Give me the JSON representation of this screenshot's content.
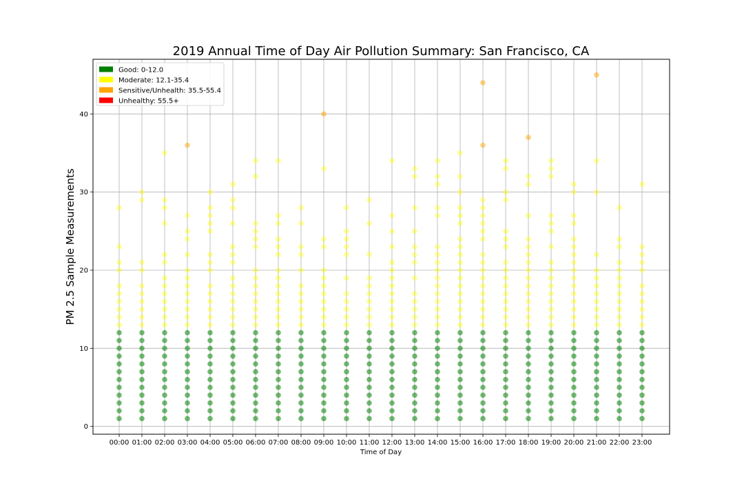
{
  "chart_data": {
    "type": "scatter",
    "title": "2019 Annual Time of Day Air Pollution Summary: San Francisco, CA",
    "xlabel": "Time of Day",
    "ylabel": "PM 2.5 Sample Measurements",
    "categories": [
      "00:00",
      "01:00",
      "02:00",
      "03:00",
      "04:00",
      "05:00",
      "06:00",
      "07:00",
      "08:00",
      "09:00",
      "10:00",
      "11:00",
      "12:00",
      "13:00",
      "14:00",
      "15:00",
      "16:00",
      "17:00",
      "18:00",
      "19:00",
      "20:00",
      "21:00",
      "22:00",
      "23:00"
    ],
    "ylim": [
      -1,
      47
    ],
    "yticks": [
      0,
      10,
      20,
      30,
      40
    ],
    "grid": true,
    "legend_position": "top-left",
    "legend": [
      {
        "label": "Good: 0-12.0",
        "color": "#008000"
      },
      {
        "label": "Moderate: 12.1-35.4",
        "color": "#ffff00"
      },
      {
        "label": "Sensitive/Unhealth: 35.5-55.4",
        "color": "#ffa500"
      },
      {
        "label": "Unhealthy: 55.5+",
        "color": "#ff0000"
      }
    ],
    "points": [
      [
        "00:00",
        [
          1,
          2,
          3,
          4,
          5,
          6,
          7,
          8,
          9,
          10,
          11,
          12,
          13,
          14,
          15,
          16,
          17,
          18,
          20,
          21,
          23,
          28
        ]
      ],
      [
        "01:00",
        [
          1,
          2,
          3,
          4,
          5,
          6,
          7,
          8,
          9,
          10,
          11,
          12,
          13,
          14,
          15,
          16,
          17,
          18,
          20,
          21,
          29,
          30
        ]
      ],
      [
        "02:00",
        [
          1,
          2,
          3,
          4,
          5,
          6,
          7,
          8,
          9,
          10,
          11,
          12,
          13,
          14,
          15,
          16,
          17,
          18,
          19,
          21,
          22,
          26,
          28,
          29,
          35
        ]
      ],
      [
        "03:00",
        [
          1,
          2,
          3,
          4,
          5,
          6,
          7,
          8,
          9,
          10,
          11,
          12,
          13,
          14,
          15,
          16,
          17,
          18,
          19,
          20,
          22,
          24,
          25,
          27,
          36
        ]
      ],
      [
        "04:00",
        [
          1,
          2,
          3,
          4,
          5,
          6,
          7,
          8,
          9,
          10,
          11,
          12,
          13,
          14,
          15,
          16,
          17,
          18,
          20,
          21,
          22,
          25,
          26,
          27,
          28,
          30
        ]
      ],
      [
        "05:00",
        [
          1,
          2,
          3,
          4,
          5,
          6,
          7,
          8,
          9,
          10,
          11,
          12,
          13,
          14,
          15,
          16,
          17,
          18,
          19,
          21,
          22,
          23,
          26,
          28,
          29,
          31
        ]
      ],
      [
        "06:00",
        [
          1,
          2,
          3,
          4,
          5,
          6,
          7,
          8,
          9,
          10,
          11,
          12,
          13,
          14,
          15,
          16,
          17,
          18,
          19,
          20,
          23,
          24,
          25,
          26,
          32,
          34
        ]
      ],
      [
        "07:00",
        [
          1,
          2,
          3,
          4,
          5,
          6,
          7,
          8,
          9,
          10,
          11,
          12,
          13,
          14,
          15,
          16,
          17,
          18,
          19,
          20,
          22,
          23,
          24,
          26,
          27,
          34
        ]
      ],
      [
        "08:00",
        [
          1,
          2,
          3,
          4,
          5,
          6,
          7,
          8,
          9,
          10,
          11,
          12,
          13,
          14,
          15,
          16,
          17,
          18,
          20,
          22,
          23,
          26,
          28
        ]
      ],
      [
        "09:00",
        [
          1,
          2,
          3,
          4,
          5,
          6,
          7,
          8,
          9,
          10,
          11,
          12,
          13,
          14,
          15,
          16,
          17,
          18,
          19,
          20,
          23,
          24,
          33,
          40
        ]
      ],
      [
        "10:00",
        [
          1,
          2,
          3,
          4,
          5,
          6,
          7,
          8,
          9,
          10,
          11,
          12,
          13,
          14,
          15,
          16,
          17,
          19,
          22,
          23,
          24,
          25,
          28
        ]
      ],
      [
        "11:00",
        [
          1,
          2,
          3,
          4,
          5,
          6,
          7,
          8,
          9,
          10,
          11,
          12,
          13,
          14,
          15,
          16,
          17,
          18,
          19,
          22,
          26,
          29
        ]
      ],
      [
        "12:00",
        [
          1,
          2,
          3,
          4,
          5,
          6,
          7,
          8,
          9,
          10,
          11,
          12,
          13,
          14,
          15,
          16,
          17,
          18,
          19,
          20,
          21,
          23,
          25,
          27,
          34
        ]
      ],
      [
        "13:00",
        [
          1,
          2,
          3,
          4,
          5,
          6,
          7,
          8,
          9,
          10,
          11,
          12,
          13,
          14,
          15,
          16,
          17,
          19,
          21,
          22,
          23,
          25,
          28,
          32,
          33
        ]
      ],
      [
        "14:00",
        [
          1,
          2,
          3,
          4,
          5,
          6,
          7,
          8,
          9,
          10,
          11,
          12,
          13,
          14,
          15,
          16,
          17,
          18,
          19,
          20,
          21,
          22,
          23,
          27,
          28,
          31,
          32,
          34
        ]
      ],
      [
        "15:00",
        [
          1,
          2,
          3,
          4,
          5,
          6,
          7,
          8,
          9,
          10,
          11,
          12,
          13,
          14,
          15,
          16,
          17,
          18,
          19,
          20,
          21,
          22,
          23,
          24,
          26,
          27,
          28,
          30,
          32,
          35
        ]
      ],
      [
        "16:00",
        [
          1,
          2,
          3,
          4,
          5,
          6,
          7,
          8,
          9,
          10,
          11,
          12,
          13,
          14,
          15,
          16,
          17,
          18,
          19,
          20,
          21,
          22,
          24,
          25,
          26,
          27,
          28,
          29,
          36,
          44
        ]
      ],
      [
        "17:00",
        [
          1,
          2,
          3,
          4,
          5,
          6,
          7,
          8,
          9,
          10,
          11,
          12,
          13,
          14,
          15,
          16,
          17,
          18,
          19,
          20,
          21,
          23,
          24,
          25,
          29,
          30,
          33,
          34
        ]
      ],
      [
        "18:00",
        [
          1,
          2,
          3,
          4,
          5,
          6,
          7,
          8,
          9,
          10,
          11,
          12,
          13,
          14,
          15,
          16,
          17,
          18,
          19,
          20,
          21,
          22,
          23,
          24,
          27,
          31,
          32,
          37
        ]
      ],
      [
        "19:00",
        [
          1,
          2,
          3,
          4,
          5,
          6,
          7,
          8,
          9,
          10,
          11,
          12,
          13,
          14,
          15,
          16,
          17,
          18,
          19,
          20,
          21,
          23,
          25,
          26,
          27,
          32,
          33,
          34
        ]
      ],
      [
        "20:00",
        [
          1,
          2,
          3,
          4,
          5,
          6,
          7,
          8,
          9,
          10,
          11,
          12,
          13,
          14,
          15,
          16,
          17,
          18,
          19,
          20,
          21,
          22,
          23,
          24,
          26,
          27,
          30,
          31
        ]
      ],
      [
        "21:00",
        [
          1,
          2,
          3,
          4,
          5,
          6,
          7,
          8,
          9,
          10,
          11,
          12,
          13,
          14,
          15,
          16,
          17,
          18,
          19,
          20,
          22,
          30,
          34,
          45
        ]
      ],
      [
        "22:00",
        [
          1,
          2,
          3,
          4,
          5,
          6,
          7,
          8,
          9,
          10,
          11,
          12,
          13,
          14,
          15,
          16,
          17,
          18,
          19,
          20,
          21,
          23,
          24,
          28
        ]
      ],
      [
        "23:00",
        [
          1,
          2,
          3,
          4,
          5,
          6,
          7,
          8,
          9,
          10,
          11,
          12,
          13,
          14,
          15,
          16,
          17,
          18,
          20,
          21,
          22,
          23,
          31
        ]
      ]
    ]
  }
}
